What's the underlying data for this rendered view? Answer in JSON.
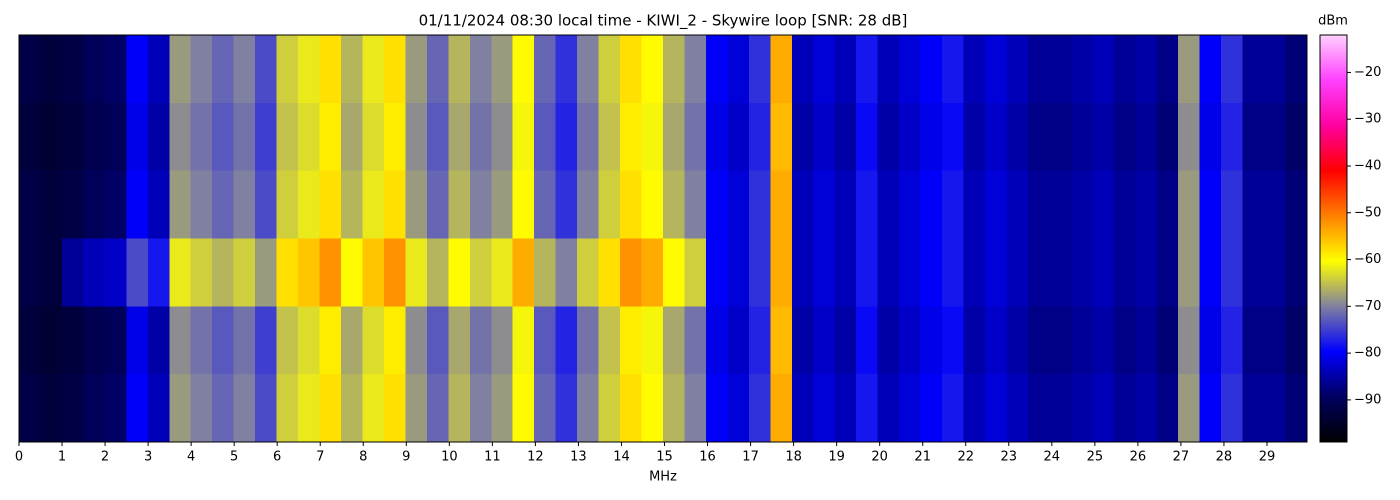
{
  "chart_data": {
    "type": "heatmap",
    "title": "01/11/2024 08:30 local time - KIWI_2 - Skywire loop [SNR: 28 dB]",
    "xlabel": "MHz",
    "xlim": [
      0,
      29.93
    ],
    "xticks": [
      0,
      1,
      2,
      3,
      4,
      5,
      6,
      7,
      8,
      9,
      10,
      11,
      12,
      13,
      14,
      15,
      16,
      17,
      18,
      19,
      20,
      21,
      22,
      23,
      24,
      25,
      26,
      27,
      28,
      29
    ],
    "values": [
      [
        -92,
        -93,
        -92,
        -90,
        -89,
        -80,
        -84,
        -68,
        -70,
        -72,
        -70,
        -74,
        -64,
        -62,
        -58,
        -66,
        -62,
        -58,
        -68,
        -72,
        -66,
        -70,
        -68,
        -60,
        -72,
        -76,
        -70,
        -64,
        -58,
        -60,
        -66,
        -70,
        -80,
        -82,
        -76,
        -54,
        -84,
        -82,
        -84,
        -78,
        -84,
        -82,
        -80,
        -78,
        -84,
        -82,
        -84,
        -86,
        -86,
        -85,
        -84,
        -86,
        -85,
        -87,
        -68,
        -80,
        -76,
        -86,
        -86,
        -88
      ],
      [
        -93,
        -94,
        -93,
        -91,
        -90,
        -81,
        -85,
        -69,
        -71,
        -73,
        -71,
        -75,
        -65,
        -63,
        -59,
        -67,
        -63,
        -59,
        -69,
        -73,
        -67,
        -71,
        -69,
        -61,
        -73,
        -77,
        -71,
        -65,
        -59,
        -61,
        -67,
        -71,
        -81,
        -83,
        -77,
        -55,
        -85,
        -83,
        -85,
        -79,
        -85,
        -83,
        -81,
        -79,
        -85,
        -83,
        -85,
        -87,
        -87,
        -86,
        -85,
        -87,
        -86,
        -88,
        -69,
        -81,
        -77,
        -87,
        -87,
        -89
      ],
      [
        -92,
        -93,
        -92,
        -90,
        -89,
        -80,
        -84,
        -68,
        -70,
        -72,
        -70,
        -74,
        -64,
        -62,
        -58,
        -66,
        -62,
        -58,
        -68,
        -72,
        -66,
        -70,
        -68,
        -60,
        -72,
        -76,
        -70,
        -64,
        -58,
        -60,
        -66,
        -70,
        -80,
        -82,
        -76,
        -54,
        -84,
        -82,
        -84,
        -78,
        -84,
        -82,
        -80,
        -78,
        -84,
        -82,
        -84,
        -86,
        -86,
        -85,
        -84,
        -86,
        -85,
        -87,
        -68,
        -80,
        -76,
        -86,
        -86,
        -88
      ],
      [
        -92,
        -93,
        -86,
        -84,
        -83,
        -74,
        -78,
        -62,
        -64,
        -66,
        -64,
        -68,
        -58,
        -56,
        -52,
        -60,
        -56,
        -52,
        -62,
        -66,
        -60,
        -64,
        -62,
        -54,
        -66,
        -70,
        -64,
        -58,
        -52,
        -54,
        -60,
        -64,
        -80,
        -82,
        -76,
        -54,
        -84,
        -82,
        -84,
        -78,
        -84,
        -82,
        -80,
        -78,
        -84,
        -82,
        -84,
        -86,
        -86,
        -85,
        -84,
        -86,
        -85,
        -87,
        -68,
        -80,
        -76,
        -86,
        -86,
        -88
      ],
      [
        -93,
        -94,
        -93,
        -91,
        -90,
        -81,
        -85,
        -69,
        -71,
        -73,
        -71,
        -75,
        -65,
        -63,
        -59,
        -67,
        -63,
        -59,
        -69,
        -73,
        -67,
        -71,
        -69,
        -61,
        -73,
        -77,
        -71,
        -65,
        -59,
        -61,
        -67,
        -71,
        -81,
        -83,
        -77,
        -55,
        -85,
        -83,
        -85,
        -79,
        -85,
        -83,
        -81,
        -79,
        -85,
        -83,
        -85,
        -87,
        -87,
        -86,
        -85,
        -87,
        -86,
        -88,
        -69,
        -81,
        -77,
        -87,
        -87,
        -89
      ],
      [
        -92,
        -93,
        -92,
        -90,
        -89,
        -80,
        -84,
        -68,
        -70,
        -72,
        -70,
        -74,
        -64,
        -62,
        -58,
        -66,
        -62,
        -58,
        -68,
        -72,
        -66,
        -70,
        -68,
        -60,
        -72,
        -76,
        -70,
        -64,
        -58,
        -60,
        -66,
        -70,
        -80,
        -82,
        -76,
        -54,
        -84,
        -82,
        -84,
        -78,
        -84,
        -82,
        -80,
        -78,
        -84,
        -82,
        -84,
        -86,
        -86,
        -85,
        -84,
        -86,
        -85,
        -87,
        -68,
        -80,
        -76,
        -86,
        -86,
        -88
      ]
    ],
    "colormap": [
      "#000000",
      "#000060",
      "#0000ff",
      "#8080a0",
      "#ffff00",
      "#ff8000",
      "#ff0000",
      "#ff00a0",
      "#ff40ff",
      "#ffd0ff"
    ],
    "colorbar": {
      "label": "dBm",
      "clim": [
        -99,
        -12
      ],
      "ticks": [
        {
          "value": -90,
          "label": "−90"
        },
        {
          "value": -80,
          "label": "−80"
        },
        {
          "value": -70,
          "label": "−70"
        },
        {
          "value": -60,
          "label": "−60"
        },
        {
          "value": -50,
          "label": "−50"
        },
        {
          "value": -40,
          "label": "−40"
        },
        {
          "value": -30,
          "label": "−30"
        },
        {
          "value": -20,
          "label": "−20"
        }
      ]
    }
  }
}
